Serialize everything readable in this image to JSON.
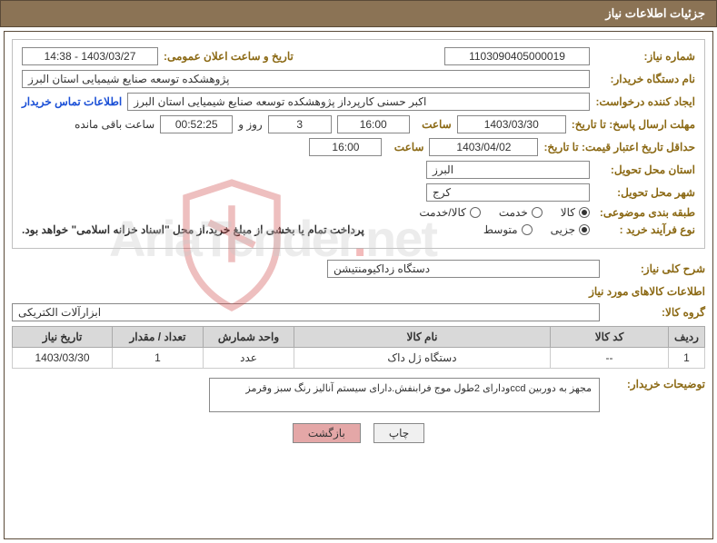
{
  "header": {
    "title": "جزئیات اطلاعات نیاز"
  },
  "need_number": {
    "label": "شماره نیاز:",
    "value": "1103090405000019"
  },
  "announce": {
    "label": "تاریخ و ساعت اعلان عمومی:",
    "value": "1403/03/27 - 14:38"
  },
  "buyer_org": {
    "label": "نام دستگاه خریدار:",
    "value": "پژوهشکده توسعه صنایع شیمیایی استان البرز"
  },
  "requester": {
    "label": "ایجاد کننده درخواست:",
    "value": "اکبر حسنی کارپرداز پژوهشکده توسعه صنایع شیمیایی استان البرز",
    "contact_link": "اطلاعات تماس خریدار"
  },
  "response_deadline": {
    "label": "مهلت ارسال پاسخ: تا تاریخ:",
    "date": "1403/03/30",
    "time_label": "ساعت",
    "time": "16:00",
    "days": "3",
    "days_suffix": "روز و",
    "countdown": "00:52:25",
    "countdown_suffix": "ساعت باقی مانده"
  },
  "price_validity": {
    "label": "حداقل تاریخ اعتبار قیمت: تا تاریخ:",
    "date": "1403/04/02",
    "time_label": "ساعت",
    "time": "16:00"
  },
  "delivery_province": {
    "label": "استان محل تحویل:",
    "value": "البرز"
  },
  "delivery_city": {
    "label": "شهر محل تحویل:",
    "value": "کرج"
  },
  "subject_class": {
    "label": "طبقه بندی موضوعی:",
    "options": [
      "کالا",
      "خدمت",
      "کالا/خدمت"
    ],
    "selected_index": 0
  },
  "purchase_type": {
    "label": "نوع فرآیند خرید :",
    "options": [
      "جزیی",
      "متوسط"
    ],
    "selected_index": 0,
    "note": "پرداخت تمام یا بخشی از مبلغ خرید،از محل \"اسناد خزانه اسلامی\" خواهد بود."
  },
  "need_desc": {
    "label": "شرح کلی نیاز:",
    "value": "دستگاه زداکیومنتیشن"
  },
  "goods_section": {
    "title": "اطلاعات کالاهای مورد نیاز"
  },
  "goods_group": {
    "label": "گروه کالا:",
    "value": "ابزارآلات الکتریکی"
  },
  "table": {
    "columns": [
      "ردیف",
      "کد کالا",
      "نام کالا",
      "واحد شمارش",
      "تعداد / مقدار",
      "تاریخ نیاز"
    ],
    "widths": [
      "40px",
      "130px",
      "auto",
      "100px",
      "100px",
      "110px"
    ],
    "rows": [
      [
        "1",
        "--",
        "دستگاه ژل داک",
        "عدد",
        "1",
        "1403/03/30"
      ]
    ]
  },
  "buyer_notes": {
    "label": "توضیحات خریدار:",
    "value": "مجهز به دوربین ccdودارای 2طول موج فرابنفش.دارای سیستم آنالیز رنگ سبز وقرمز"
  },
  "buttons": {
    "print": "چاپ",
    "back": "بازگشت"
  },
  "watermark": {
    "text1": "AriaTender",
    "text2": "net"
  },
  "colors": {
    "header_bg": "#8b7355",
    "label_color": "#8b6914",
    "border": "#5a4a38",
    "link": "#1a4fd6",
    "btn_back_bg": "#e4a7a7"
  }
}
